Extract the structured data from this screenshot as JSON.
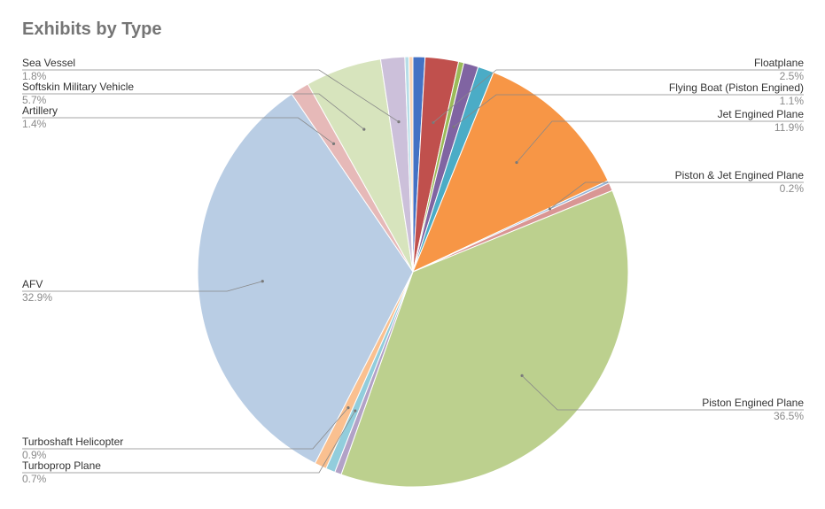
{
  "chart_data": {
    "type": "pie",
    "title": "Exhibits by Type",
    "slices": [
      {
        "label": "",
        "value": 0.9,
        "pct": "",
        "color": "#4472c4",
        "labeled": false
      },
      {
        "label": "Floatplane",
        "value": 2.5,
        "pct": "2.5%",
        "color": "#c0504d",
        "labeled": true
      },
      {
        "label": "",
        "value": 0.4,
        "pct": "",
        "color": "#9bbb59",
        "labeled": false
      },
      {
        "label": "Flying Boat (Piston Engined)",
        "value": 1.1,
        "pct": "1.1%",
        "color": "#8064a2",
        "labeled": true
      },
      {
        "label": "",
        "value": 1.2,
        "pct": "",
        "color": "#4bacc6",
        "labeled": false
      },
      {
        "label": "Jet Engined Plane",
        "value": 11.9,
        "pct": "11.9%",
        "color": "#f79646",
        "labeled": true
      },
      {
        "label": "Piston & Jet Engined Plane",
        "value": 0.2,
        "pct": "0.2%",
        "color": "#95b3d7",
        "labeled": true
      },
      {
        "label": "",
        "value": 0.6,
        "pct": "",
        "color": "#d99694",
        "labeled": false
      },
      {
        "label": "Piston Engined Plane",
        "value": 36.5,
        "pct": "36.5%",
        "color": "#bcd08e",
        "labeled": true
      },
      {
        "label": "",
        "value": 0.5,
        "pct": "",
        "color": "#b2a2c7",
        "labeled": false
      },
      {
        "label": "Turboprop Plane",
        "value": 0.7,
        "pct": "0.7%",
        "color": "#92cddc",
        "labeled": true
      },
      {
        "label": "Turboshaft Helicopter",
        "value": 0.9,
        "pct": "0.9%",
        "color": "#fac090",
        "labeled": true
      },
      {
        "label": "AFV",
        "value": 32.9,
        "pct": "32.9%",
        "color": "#b9cde4",
        "labeled": true
      },
      {
        "label": "Artillery",
        "value": 1.4,
        "pct": "1.4%",
        "color": "#e6b9b8",
        "labeled": true
      },
      {
        "label": "Softskin Military Vehicle",
        "value": 5.7,
        "pct": "5.7%",
        "color": "#d7e4bd",
        "labeled": true
      },
      {
        "label": "Sea Vessel",
        "value": 1.8,
        "pct": "1.8%",
        "color": "#ccc0da",
        "labeled": true
      },
      {
        "label": "",
        "value": 0.3,
        "pct": "",
        "color": "#b7dee8",
        "labeled": false
      },
      {
        "label": "",
        "value": 0.3,
        "pct": "",
        "color": "#fcd5b5",
        "labeled": false
      }
    ]
  }
}
